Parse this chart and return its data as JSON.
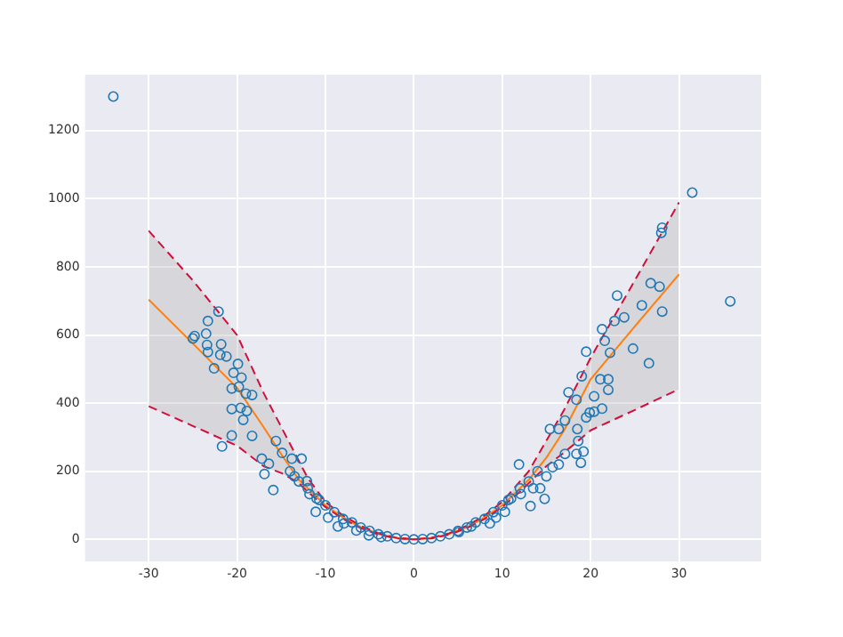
{
  "chart_data": {
    "type": "scatter",
    "xlim": [
      -37.2,
      39.3
    ],
    "ylim": [
      -65,
      1364
    ],
    "xticks": [
      -30,
      -20,
      -10,
      0,
      10,
      20,
      30
    ],
    "yticks": [
      0,
      200,
      400,
      600,
      800,
      1000,
      1200
    ],
    "grid": true,
    "legend": false,
    "marker": "circle",
    "series": [
      {
        "type": "scatter",
        "color": "#1f77b4",
        "x": [
          -34,
          -25,
          -24.8,
          -23.5,
          -23.4,
          -23.3,
          -23.3,
          -22.6,
          -22.1,
          -21.9,
          -21.8,
          -21.7,
          -21.2,
          -20.6,
          -20.6,
          -20.6,
          -20.4,
          -19.9,
          -19.8,
          -19.6,
          -19.5,
          -19.3,
          -19,
          -18.9,
          -18.3,
          -18.3,
          -17.2,
          -16.9,
          -16.4,
          -15.9,
          -15.6,
          -14.9,
          -14,
          -13.8,
          -13.5,
          -13,
          -12.7,
          -12.1,
          -12,
          -11.8,
          -11.1,
          -11,
          -10.7,
          -10,
          -9.7,
          -9,
          -8.6,
          -8,
          -7.9,
          -7,
          -6.5,
          -6,
          -5.1,
          -5,
          -4,
          -3.7,
          -3,
          -2,
          -1,
          0,
          1,
          2,
          3,
          4,
          5,
          5.1,
          6,
          6.5,
          7,
          8,
          8.6,
          9,
          9.3,
          10,
          10.3,
          10.7,
          11,
          11.9,
          12,
          12.1,
          13,
          13.2,
          13.5,
          14,
          14.3,
          14.8,
          15,
          15.4,
          15.7,
          16.4,
          16.4,
          17.1,
          17.1,
          17.5,
          18.4,
          18.4,
          18.5,
          18.6,
          18.9,
          19,
          19.2,
          19.5,
          19.5,
          19.9,
          20.4,
          20.4,
          21.1,
          21.3,
          21.3,
          21.6,
          22,
          22,
          22.2,
          22.7,
          23,
          23.8,
          24.8,
          25.8,
          26.6,
          26.8,
          27.8,
          28,
          28.1,
          28.1,
          31.5,
          35.8
        ],
        "values": [
          1300,
          590,
          597,
          604,
          571,
          641,
          550,
          502,
          669,
          542,
          573,
          273,
          537,
          443,
          383,
          305,
          489,
          515,
          448,
          386,
          475,
          351,
          428,
          377,
          424,
          304,
          237,
          192,
          222,
          145,
          289,
          254,
          200,
          237,
          185,
          170,
          237,
          171,
          150,
          133,
          81,
          120,
          116,
          100,
          64,
          80,
          38,
          60,
          47,
          50,
          26,
          35,
          12,
          25,
          15,
          7,
          9,
          4,
          1,
          0,
          1,
          4,
          9,
          15,
          25,
          22,
          35,
          38,
          50,
          60,
          47,
          80,
          64,
          100,
          81,
          116,
          120,
          220,
          150,
          133,
          170,
          98,
          150,
          200,
          150,
          119,
          185,
          324,
          212,
          220,
          324,
          349,
          251,
          432,
          410,
          251,
          324,
          289,
          225,
          479,
          258,
          551,
          358,
          372,
          375,
          420,
          470,
          384,
          617,
          583,
          470,
          439,
          548,
          641,
          716,
          652,
          560,
          687,
          517,
          752,
          742,
          900,
          915,
          669,
          1018,
          699
        ]
      },
      {
        "type": "line",
        "color": "#ff7f0e",
        "line_style": "solid",
        "marker": "none",
        "x": [
          -30,
          -25,
          -20,
          -17,
          -15,
          -13,
          -12,
          -10,
          -8,
          -6,
          -4,
          -2,
          0,
          2,
          4,
          6,
          8,
          10,
          12,
          13,
          15,
          17,
          20,
          25,
          30
        ],
        "values": [
          704,
          575,
          445,
          330,
          250,
          175,
          150,
          100,
          64,
          36,
          16,
          4,
          0,
          4,
          16,
          36,
          64,
          100,
          150,
          175,
          240,
          320,
          470,
          625,
          778
        ],
        "lower": [
          391,
          333,
          275,
          215,
          195,
          165,
          140,
          95,
          60,
          33,
          14,
          3,
          0,
          3,
          14,
          33,
          60,
          95,
          140,
          165,
          215,
          255,
          320,
          380,
          441
        ],
        "upper": [
          906,
          760,
          600,
          430,
          330,
          230,
          180,
          110,
          70,
          40,
          18,
          5,
          0,
          5,
          18,
          40,
          70,
          110,
          170,
          200,
          290,
          380,
          533,
          760,
          989
        ]
      },
      {
        "type": "line",
        "color": "#d0103a",
        "line_style": "dashed",
        "marker": "none",
        "x": [
          -30,
          -25,
          -20,
          -17,
          -15,
          -13,
          -12,
          -10,
          -8,
          -6,
          -4,
          -2,
          0,
          2,
          4,
          6,
          8,
          10,
          12,
          13,
          15,
          17,
          20,
          25,
          30
        ],
        "values": [
          391,
          333,
          275,
          215,
          195,
          165,
          140,
          95,
          60,
          33,
          14,
          3,
          0,
          3,
          14,
          33,
          60,
          95,
          140,
          165,
          215,
          255,
          320,
          380,
          441
        ]
      },
      {
        "type": "line",
        "color": "#d0103a",
        "line_style": "dashed",
        "marker": "none",
        "x": [
          -30,
          -25,
          -20,
          -17,
          -15,
          -13,
          -12,
          -10,
          -8,
          -6,
          -4,
          -2,
          0,
          2,
          4,
          6,
          8,
          10,
          12,
          13,
          15,
          17,
          20,
          25,
          30
        ],
        "values": [
          906,
          760,
          600,
          430,
          330,
          230,
          180,
          110,
          70,
          40,
          18,
          5,
          0,
          5,
          18,
          40,
          70,
          110,
          170,
          200,
          290,
          380,
          533,
          760,
          989
        ]
      }
    ]
  }
}
